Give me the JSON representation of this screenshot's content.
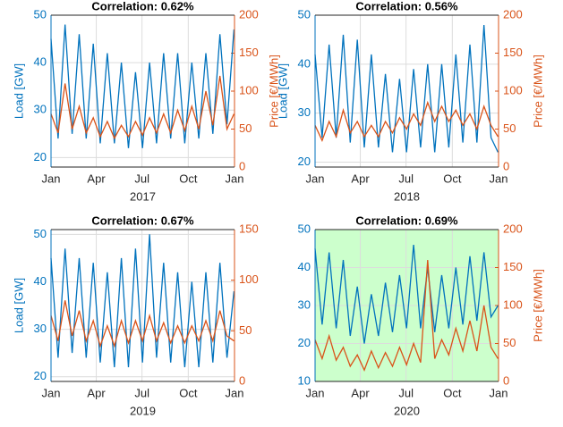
{
  "chart_data": [
    {
      "type": "line",
      "title": "Correlation: 0.62%",
      "xlabel": "2017",
      "ylabel": "Load [GW]",
      "y2label": "Price [€/MWh]",
      "x": [
        0,
        14,
        28,
        42,
        56,
        70,
        84,
        98,
        112,
        126,
        140,
        154,
        168,
        182,
        196,
        210,
        224,
        238,
        252,
        266,
        280,
        294,
        308,
        322,
        336,
        350,
        364
      ],
      "xlim": [
        0,
        365
      ],
      "xticks": [
        {
          "value": 0,
          "label": "Jan"
        },
        {
          "value": 90,
          "label": "Apr"
        },
        {
          "value": 181,
          "label": "Jul"
        },
        {
          "value": 273,
          "label": "Oct"
        },
        {
          "value": 365,
          "label": "Jan"
        }
      ],
      "ylim": [
        18,
        50
      ],
      "yticks": [
        20,
        30,
        40,
        50
      ],
      "y2lim": [
        0,
        200
      ],
      "y2ticks": [
        0,
        50,
        100,
        150,
        200
      ],
      "grid": true,
      "background": "#ffffff",
      "series": [
        {
          "color": "#0072bd",
          "values": [
            45,
            24,
            48,
            25,
            46,
            24,
            44,
            23,
            42,
            23,
            40,
            22,
            38,
            22,
            40,
            23,
            42,
            24,
            42,
            23,
            40,
            24,
            42,
            25,
            46,
            27,
            47
          ]
        },
        {
          "color": "#d95319",
          "axis": "y2",
          "values": [
            70,
            45,
            110,
            50,
            80,
            45,
            65,
            40,
            60,
            38,
            55,
            40,
            60,
            42,
            65,
            45,
            70,
            45,
            75,
            48,
            80,
            50,
            100,
            55,
            120,
            50,
            70
          ]
        }
      ]
    },
    {
      "type": "line",
      "title": "Correlation: 0.56%",
      "xlabel": "2018",
      "ylabel": "Load [GW]",
      "y2label": "Price [€/MWh]",
      "x": [
        0,
        14,
        28,
        42,
        56,
        70,
        84,
        98,
        112,
        126,
        140,
        154,
        168,
        182,
        196,
        210,
        224,
        238,
        252,
        266,
        280,
        294,
        308,
        322,
        336,
        350,
        364
      ],
      "xlim": [
        0,
        365
      ],
      "xticks": [
        {
          "value": 0,
          "label": "Jan"
        },
        {
          "value": 90,
          "label": "Apr"
        },
        {
          "value": 181,
          "label": "Jul"
        },
        {
          "value": 273,
          "label": "Oct"
        },
        {
          "value": 365,
          "label": "Jan"
        }
      ],
      "ylim": [
        19,
        50
      ],
      "yticks": [
        20,
        30,
        40,
        50
      ],
      "y2lim": [
        0,
        200
      ],
      "y2ticks": [
        0,
        50,
        100,
        150,
        200
      ],
      "grid": true,
      "background": "#ffffff",
      "series": [
        {
          "color": "#0072bd",
          "values": [
            42,
            25,
            44,
            25,
            46,
            24,
            45,
            23,
            42,
            23,
            38,
            22,
            37,
            22,
            39,
            23,
            40,
            22,
            40,
            23,
            42,
            24,
            44,
            24,
            48,
            25,
            22
          ]
        },
        {
          "color": "#d95319",
          "axis": "y2",
          "values": [
            55,
            35,
            60,
            40,
            75,
            45,
            60,
            40,
            55,
            40,
            60,
            45,
            65,
            50,
            70,
            55,
            85,
            60,
            80,
            60,
            75,
            55,
            70,
            50,
            80,
            55,
            40
          ]
        }
      ]
    },
    {
      "type": "line",
      "title": "Correlation: 0.67%",
      "xlabel": "2019",
      "ylabel": "Load [GW]",
      "x": [
        0,
        14,
        28,
        42,
        56,
        70,
        84,
        98,
        112,
        126,
        140,
        154,
        168,
        182,
        196,
        210,
        224,
        238,
        252,
        266,
        280,
        294,
        308,
        322,
        336,
        350,
        364
      ],
      "xlim": [
        0,
        365
      ],
      "xticks": [
        {
          "value": 0,
          "label": "Jan"
        },
        {
          "value": 90,
          "label": "Apr"
        },
        {
          "value": 181,
          "label": "Jul"
        },
        {
          "value": 273,
          "label": "Oct"
        },
        {
          "value": 365,
          "label": "Jan"
        }
      ],
      "ylim": [
        19,
        51
      ],
      "yticks": [
        20,
        30,
        40,
        50
      ],
      "y2lim": [
        0,
        150
      ],
      "y2ticks": [
        0,
        50,
        100,
        150
      ],
      "grid": true,
      "background": "#ffffff",
      "series": [
        {
          "color": "#0072bd",
          "values": [
            45,
            24,
            47,
            25,
            45,
            24,
            44,
            23,
            42,
            22,
            45,
            22,
            47,
            23,
            50,
            24,
            44,
            23,
            42,
            22,
            40,
            22,
            42,
            23,
            44,
            24,
            38
          ]
        },
        {
          "color": "#d95319",
          "axis": "y2",
          "values": [
            65,
            40,
            80,
            45,
            70,
            40,
            60,
            35,
            55,
            35,
            60,
            38,
            60,
            40,
            65,
            40,
            58,
            38,
            55,
            38,
            55,
            40,
            60,
            40,
            70,
            45,
            40
          ]
        }
      ]
    },
    {
      "type": "line",
      "title": "Correlation: 0.69%",
      "xlabel": "2020",
      "y2label": "Price [€/MWh]",
      "x": [
        0,
        14,
        28,
        42,
        56,
        70,
        84,
        98,
        112,
        126,
        140,
        154,
        168,
        182,
        196,
        210,
        224,
        238,
        252,
        266,
        280,
        294,
        308,
        322,
        336,
        350,
        364
      ],
      "xlim": [
        0,
        365
      ],
      "xticks": [
        {
          "value": 0,
          "label": "Jan"
        },
        {
          "value": 90,
          "label": "Apr"
        },
        {
          "value": 181,
          "label": "Jul"
        },
        {
          "value": 273,
          "label": "Oct"
        },
        {
          "value": 365,
          "label": "Jan"
        }
      ],
      "ylim": [
        10,
        50
      ],
      "yticks": [
        10,
        20,
        30,
        40,
        50
      ],
      "y2lim": [
        0,
        200
      ],
      "y2ticks": [
        0,
        50,
        100,
        150,
        200
      ],
      "grid": true,
      "background": "#ccffcc",
      "series": [
        {
          "color": "#0072bd",
          "values": [
            45,
            25,
            44,
            24,
            42,
            22,
            35,
            20,
            33,
            22,
            36,
            23,
            38,
            24,
            46,
            24,
            40,
            23,
            38,
            24,
            40,
            25,
            43,
            26,
            44,
            27,
            30
          ]
        },
        {
          "color": "#d95319",
          "axis": "y2",
          "values": [
            55,
            30,
            60,
            28,
            45,
            20,
            35,
            15,
            40,
            18,
            38,
            20,
            45,
            22,
            50,
            25,
            160,
            30,
            55,
            35,
            70,
            40,
            80,
            40,
            100,
            45,
            30
          ]
        }
      ]
    }
  ]
}
